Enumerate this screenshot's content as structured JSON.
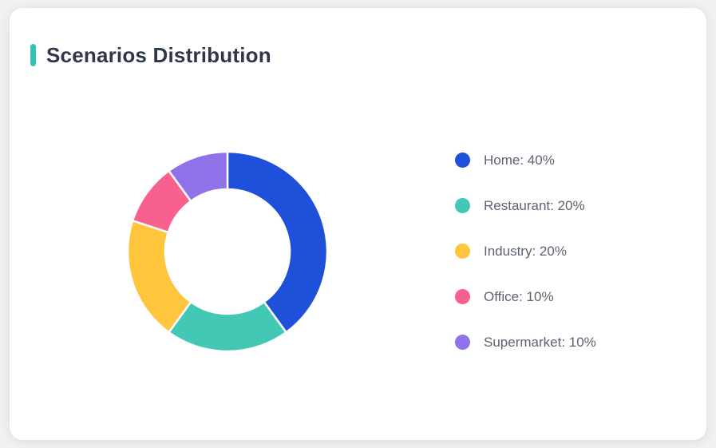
{
  "page": {
    "background_color": "#f0f1f3",
    "card_background_color": "#ffffff"
  },
  "header": {
    "title": "Scenarios Distribution",
    "accent_color": "#35c2b2",
    "title_color": "#2d3848"
  },
  "chart_data": {
    "type": "pie",
    "subtype": "donut",
    "title": "Scenarios Distribution",
    "categories": [
      "Home",
      "Restaurant",
      "Industry",
      "Office",
      "Supermarket"
    ],
    "values": [
      40,
      20,
      20,
      10,
      10
    ],
    "unit": "%",
    "colors": [
      "#1e50d9",
      "#44c8b6",
      "#fec53d",
      "#f8618d",
      "#9072e8"
    ],
    "start_angle": "top",
    "direction": "clockwise",
    "inner_radius_ratio": 0.62,
    "slice_border_color": "#ffffff",
    "slice_border_width": 2.5,
    "legend_position": "right",
    "grid": false
  },
  "legend": {
    "items": [
      {
        "text": "Home: 40%",
        "label": "Home",
        "value": 40,
        "color": "#1e50d9"
      },
      {
        "text": "Restaurant: 20%",
        "label": "Restaurant",
        "value": 20,
        "color": "#44c8b6"
      },
      {
        "text": "Industry: 20%",
        "label": "Industry",
        "value": 20,
        "color": "#fec53d"
      },
      {
        "text": "Office: 10%",
        "label": "Office",
        "value": 10,
        "color": "#f8618d"
      },
      {
        "text": "Supermarket: 10%",
        "label": "Supermarket",
        "value": 10,
        "color": "#9072e8"
      }
    ],
    "text_color": "#5c6370"
  }
}
